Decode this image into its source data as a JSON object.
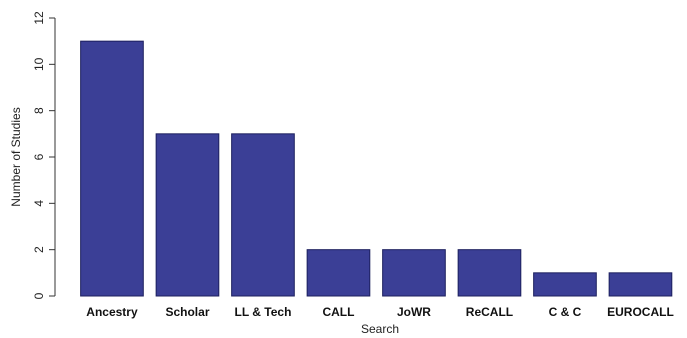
{
  "chart_data": {
    "type": "bar",
    "categories": [
      "Ancestry",
      "Scholar",
      "LL & Tech",
      "CALL",
      "JoWR",
      "ReCALL",
      "C & C",
      "EUROCALL"
    ],
    "values": [
      11,
      7,
      7,
      2,
      2,
      2,
      1,
      1
    ],
    "xlabel": "Search",
    "ylabel": "Number of Studies",
    "ylim": [
      0,
      12
    ],
    "yticks": [
      0,
      2,
      4,
      6,
      8,
      10,
      12
    ],
    "grid": false,
    "legend": "none",
    "bar_color": "#3b3f96",
    "bar_edge_color": "#1c1f5e"
  }
}
